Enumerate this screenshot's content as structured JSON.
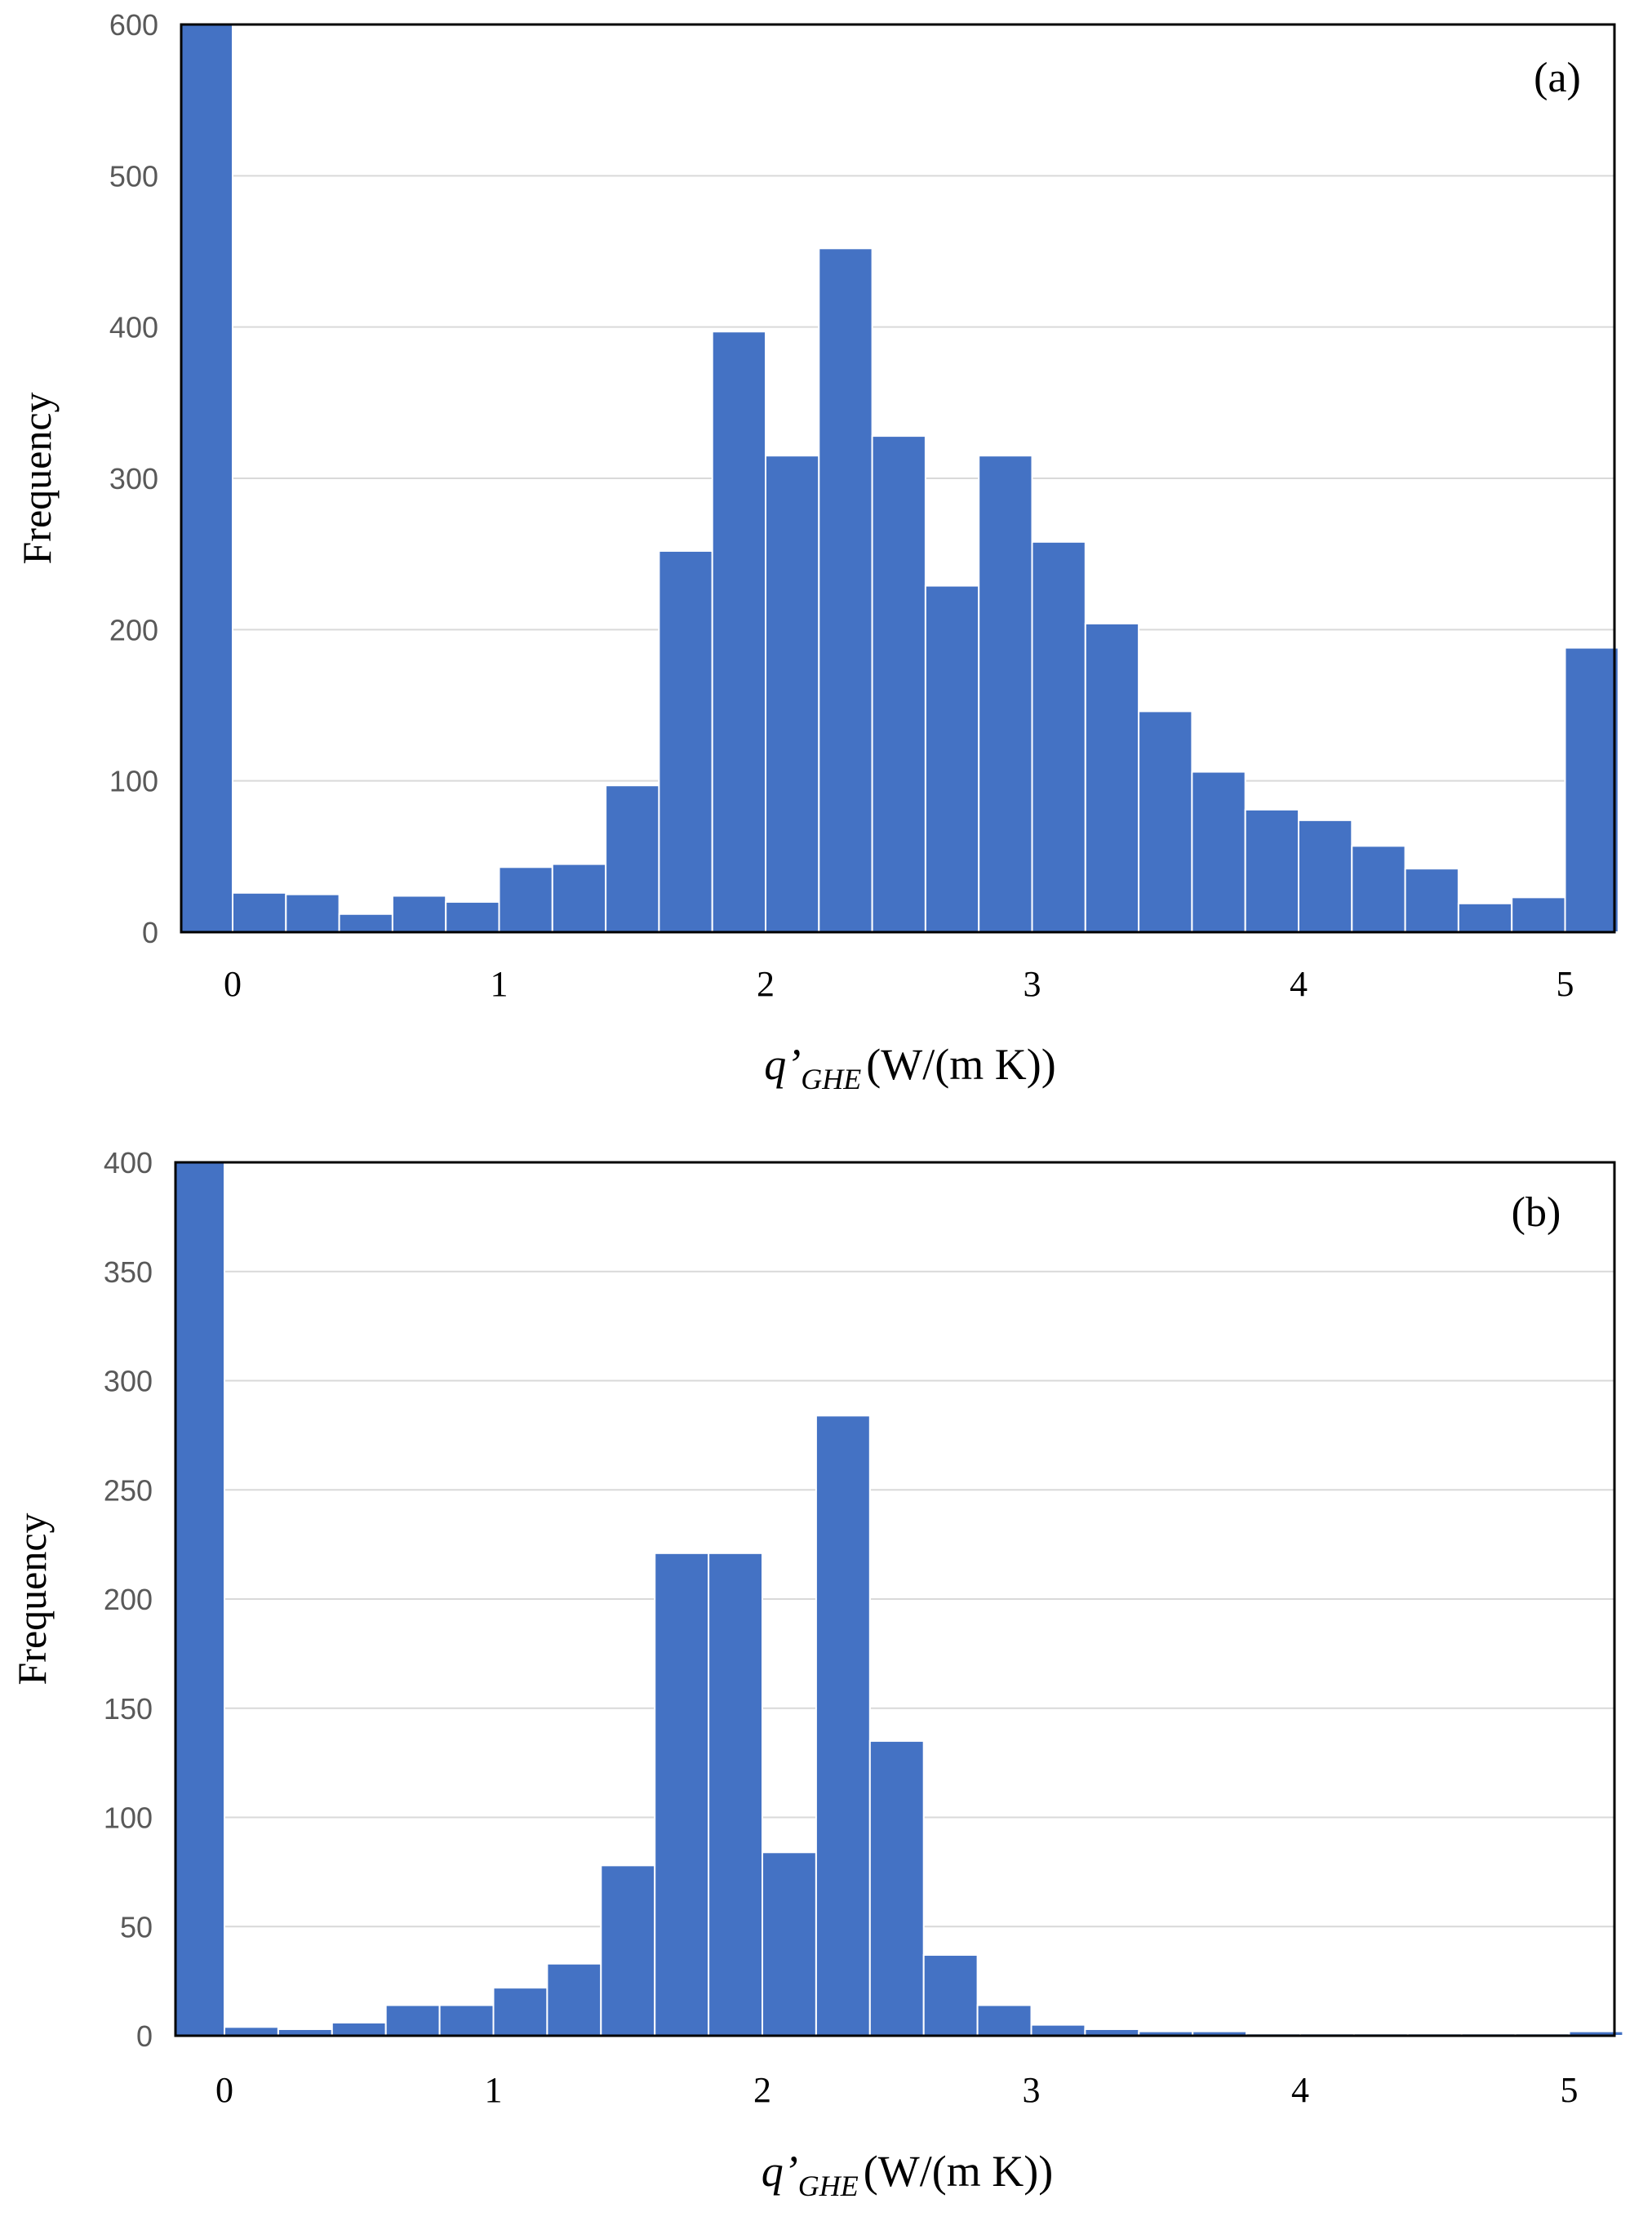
{
  "chart_data": [
    {
      "type": "bar",
      "panel": "(a)",
      "title": "",
      "ylabel": "Frequency",
      "xlabel_main": "q’",
      "xlabel_sub": "GHE",
      "xlabel_units": "(W/(m K))",
      "ylim": [
        0,
        600
      ],
      "yticks": [
        0,
        100,
        200,
        300,
        400,
        500,
        600
      ],
      "xticks": [
        0,
        1,
        2,
        3,
        4,
        5
      ],
      "bin_width": 0.2,
      "bins": [
        "<0",
        "0.0-0.2",
        "0.2-0.4",
        "0.4-0.6",
        "0.6-0.8",
        "0.8-1.0",
        "1.0-1.2",
        "1.2-1.4",
        "1.4-1.6",
        "1.6-1.8",
        "1.8-2.0",
        "2.0-2.2",
        "2.2-2.4",
        "2.4-2.6",
        "2.6-2.8",
        "2.8-3.0",
        "3.0-3.2",
        "3.2-3.4",
        "3.4-3.6",
        "3.6-3.8",
        "3.8-4.0",
        "4.0-4.2",
        "4.2-4.4",
        "4.4-4.6",
        "4.6-4.8",
        "4.8-5.0",
        ">5.0"
      ],
      "values": [
        600,
        26,
        25,
        12,
        24,
        20,
        43,
        45,
        97,
        252,
        397,
        315,
        452,
        328,
        229,
        315,
        258,
        204,
        146,
        106,
        81,
        74,
        57,
        42,
        19,
        23,
        188
      ],
      "legend": null
    },
    {
      "type": "bar",
      "panel": "(b)",
      "title": "",
      "ylabel": "Frequency",
      "xlabel_main": "q’",
      "xlabel_sub": "GHE",
      "xlabel_units": "(W/(m K))",
      "ylim": [
        0,
        400
      ],
      "yticks": [
        0,
        50,
        100,
        150,
        200,
        250,
        300,
        350,
        400
      ],
      "xticks": [
        0,
        1,
        2,
        3,
        4,
        5
      ],
      "bin_width": 0.2,
      "bins": [
        "<0",
        "0.0-0.2",
        "0.2-0.4",
        "0.4-0.6",
        "0.6-0.8",
        "0.8-1.0",
        "1.0-1.2",
        "1.2-1.4",
        "1.4-1.6",
        "1.6-1.8",
        "1.8-2.0",
        "2.0-2.2",
        "2.2-2.4",
        "2.4-2.6",
        "2.6-2.8",
        "2.8-3.0",
        "3.0-3.2",
        "3.2-3.4",
        "3.4-3.6",
        "3.6-3.8",
        "3.8-4.0",
        "4.0-4.2",
        "4.2-4.4",
        "4.4-4.6",
        "4.6-4.8",
        "4.8-5.0",
        ">5.0"
      ],
      "values": [
        400,
        4,
        3,
        6,
        14,
        14,
        22,
        33,
        78,
        221,
        221,
        84,
        284,
        135,
        37,
        14,
        5,
        3,
        2,
        2,
        1,
        1,
        1,
        1,
        1,
        1,
        2
      ],
      "legend": null
    }
  ],
  "colors": {
    "bar": "#4472C4",
    "grid": "#d9d9d9",
    "frame": "#000000"
  }
}
